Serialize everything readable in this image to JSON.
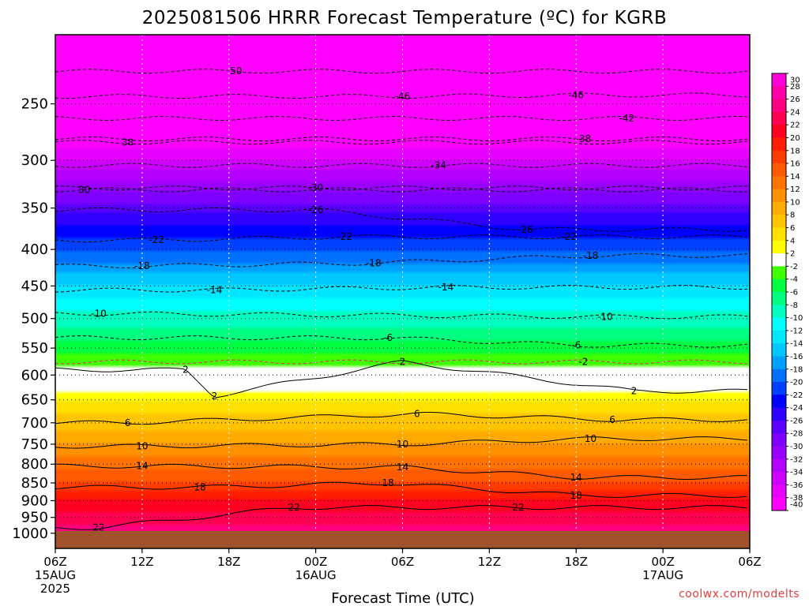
{
  "chart_data": {
    "type": "heatmap",
    "title": "2025081506 HRRR Forecast Temperature (ºC) for KGRB",
    "xlabel": "Forecast Time (UTC)",
    "ylabel": "",
    "x_ticks": [
      {
        "hour": 0,
        "label": "06Z",
        "sub1": "15AUG",
        "sub2": "2025"
      },
      {
        "hour": 6,
        "label": "12Z",
        "sub1": "",
        "sub2": ""
      },
      {
        "hour": 12,
        "label": "18Z",
        "sub1": "",
        "sub2": ""
      },
      {
        "hour": 18,
        "label": "00Z",
        "sub1": "16AUG",
        "sub2": ""
      },
      {
        "hour": 24,
        "label": "06Z",
        "sub1": "",
        "sub2": ""
      },
      {
        "hour": 30,
        "label": "12Z",
        "sub1": "",
        "sub2": ""
      },
      {
        "hour": 36,
        "label": "18Z",
        "sub1": "",
        "sub2": ""
      },
      {
        "hour": 42,
        "label": "00Z",
        "sub1": "17AUG",
        "sub2": ""
      },
      {
        "hour": 48,
        "label": "06Z",
        "sub1": "",
        "sub2": ""
      }
    ],
    "xlim_hours": [
      0,
      48
    ],
    "y_axis_pressure_hPa": [
      250,
      300,
      350,
      400,
      450,
      500,
      550,
      600,
      650,
      700,
      750,
      800,
      850,
      900,
      950,
      1000
    ],
    "ylim_hPa": [
      200,
      1050
    ],
    "y_scale": "log",
    "grid": true,
    "colorbar": {
      "levels": [
        -40,
        -38,
        -36,
        -34,
        -32,
        -30,
        -28,
        -26,
        -24,
        -22,
        -20,
        -18,
        -16,
        -14,
        -12,
        -10,
        -8,
        -6,
        -4,
        -2,
        2,
        4,
        6,
        8,
        10,
        12,
        14,
        16,
        18,
        20,
        22,
        24,
        26,
        28,
        30
      ],
      "colors": [
        "#ff00ff",
        "#e600ff",
        "#cc00ff",
        "#b300ff",
        "#9900ff",
        "#7f00ff",
        "#5a00ff",
        "#3000ff",
        "#0000ff",
        "#0040ff",
        "#0070ff",
        "#00a0ff",
        "#00c8ff",
        "#00e6ff",
        "#00ffff",
        "#00ffc0",
        "#00ff80",
        "#00ff40",
        "#40ff00",
        "#ffffff",
        "#ffff00",
        "#ffe000",
        "#ffc400",
        "#ffaa00",
        "#ff9000",
        "#ff7400",
        "#ff5a00",
        "#ff3c00",
        "#ff1e00",
        "#ff0020",
        "#ff0050",
        "#ff0080",
        "#ff00a8",
        "#ff00d8"
      ]
    },
    "temperature_profile_hour0": [
      {
        "p": 220,
        "t": -52
      },
      {
        "p": 250,
        "t": -46
      },
      {
        "p": 300,
        "t": -36
      },
      {
        "p": 350,
        "t": -27
      },
      {
        "p": 400,
        "t": -20
      },
      {
        "p": 450,
        "t": -14
      },
      {
        "p": 500,
        "t": -9
      },
      {
        "p": 550,
        "t": -5
      },
      {
        "p": 600,
        "t": -1
      },
      {
        "p": 650,
        "t": 4
      },
      {
        "p": 700,
        "t": 7
      },
      {
        "p": 750,
        "t": 10
      },
      {
        "p": 800,
        "t": 13
      },
      {
        "p": 850,
        "t": 16
      },
      {
        "p": 900,
        "t": 20
      },
      {
        "p": 950,
        "t": 23
      },
      {
        "p": 1000,
        "t": 26
      }
    ],
    "contour_labels": [
      {
        "text": "50",
        "hour": 12.5,
        "p": 225
      },
      {
        "text": "-46",
        "hour": 24,
        "p": 244
      },
      {
        "text": "-46",
        "hour": 36,
        "p": 243
      },
      {
        "text": "-42",
        "hour": 39.5,
        "p": 262
      },
      {
        "text": "38",
        "hour": 5,
        "p": 283
      },
      {
        "text": "-38",
        "hour": 36.5,
        "p": 280
      },
      {
        "text": "-34",
        "hour": 26.5,
        "p": 305
      },
      {
        "text": "30",
        "hour": 2,
        "p": 330
      },
      {
        "text": "-30",
        "hour": 18,
        "p": 328
      },
      {
        "text": "-26",
        "hour": 18,
        "p": 352
      },
      {
        "text": "-26",
        "hour": 32.5,
        "p": 375
      },
      {
        "text": "-22",
        "hour": 7,
        "p": 388
      },
      {
        "text": "-22",
        "hour": 20,
        "p": 384
      },
      {
        "text": "-22",
        "hour": 35.5,
        "p": 384
      },
      {
        "text": "-18",
        "hour": 6,
        "p": 422
      },
      {
        "text": "-18",
        "hour": 22,
        "p": 418
      },
      {
        "text": "-18",
        "hour": 37,
        "p": 408
      },
      {
        "text": "-14",
        "hour": 11,
        "p": 456
      },
      {
        "text": "-14",
        "hour": 27,
        "p": 452
      },
      {
        "text": "-10",
        "hour": 3,
        "p": 492
      },
      {
        "text": "-10",
        "hour": 38,
        "p": 497
      },
      {
        "text": "-6",
        "hour": 23,
        "p": 532
      },
      {
        "text": "-6",
        "hour": 36,
        "p": 545
      },
      {
        "text": "-2",
        "hour": 36.5,
        "p": 575
      },
      {
        "text": "2",
        "hour": 9,
        "p": 590
      },
      {
        "text": "2",
        "hour": 24,
        "p": 575
      },
      {
        "text": "2",
        "hour": 11,
        "p": 642
      },
      {
        "text": "2",
        "hour": 40,
        "p": 632
      },
      {
        "text": "6",
        "hour": 5,
        "p": 700
      },
      {
        "text": "6",
        "hour": 25,
        "p": 680
      },
      {
        "text": "6",
        "hour": 38.5,
        "p": 693
      },
      {
        "text": "10",
        "hour": 6,
        "p": 755
      },
      {
        "text": "10",
        "hour": 24,
        "p": 750
      },
      {
        "text": "10",
        "hour": 37,
        "p": 737
      },
      {
        "text": "14",
        "hour": 6,
        "p": 805
      },
      {
        "text": "14",
        "hour": 24,
        "p": 808
      },
      {
        "text": "14",
        "hour": 36,
        "p": 835
      },
      {
        "text": "18",
        "hour": 10,
        "p": 862
      },
      {
        "text": "18",
        "hour": 23,
        "p": 850
      },
      {
        "text": "18",
        "hour": 36,
        "p": 885
      },
      {
        "text": "22",
        "hour": 16.5,
        "p": 920
      },
      {
        "text": "22",
        "hour": 32,
        "p": 920
      },
      {
        "text": "22",
        "hour": 3,
        "p": 982
      }
    ]
  },
  "credit": "coolwx.com/modelts"
}
